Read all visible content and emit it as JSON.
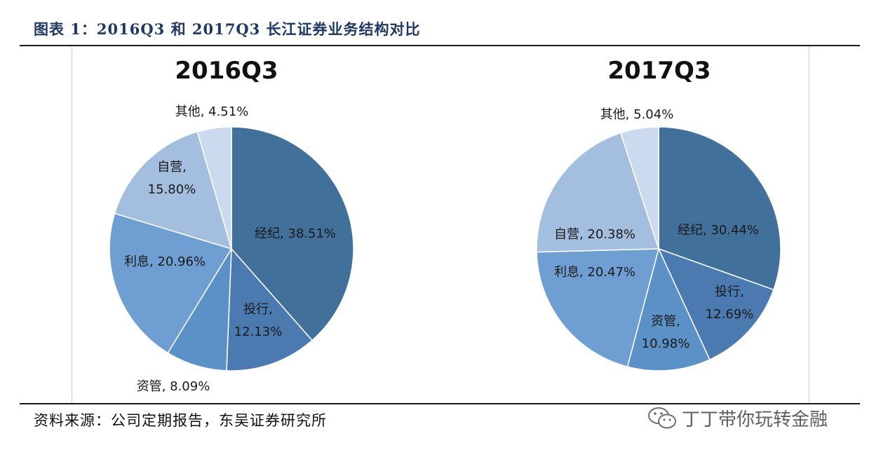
{
  "figure": {
    "title": "图表 1：2016Q3 和 2017Q3 长江证券业务结构对比",
    "source": "资料来源：公司定期报告，东吴证券研究所",
    "watermark": "丁丁带你玩转金融"
  },
  "colors": {
    "经纪": "#41709a",
    "投行": "#4a7ab0",
    "资管": "#5b91c7",
    "利息": "#6f9ed3",
    "自营": "#a3bedf",
    "其他": "#cbdaee"
  },
  "chart_data": [
    {
      "type": "pie",
      "title": "2016Q3",
      "slices": [
        {
          "name": "经纪",
          "value": 38.51,
          "label": "经纪, 38.51%"
        },
        {
          "name": "投行",
          "value": 12.13,
          "label": "投行,|12.13%"
        },
        {
          "name": "资管",
          "value": 8.09,
          "label": "资管, 8.09%"
        },
        {
          "name": "利息",
          "value": 20.96,
          "label": "利息, 20.96%"
        },
        {
          "name": "自营",
          "value": 15.8,
          "label": "自营,|15.80%"
        },
        {
          "name": "其他",
          "value": 4.51,
          "label": "其他, 4.51%"
        }
      ]
    },
    {
      "type": "pie",
      "title": "2017Q3",
      "slices": [
        {
          "name": "经纪",
          "value": 30.44,
          "label": "经纪, 30.44%"
        },
        {
          "name": "投行",
          "value": 12.69,
          "label": "投行,|12.69%"
        },
        {
          "name": "资管",
          "value": 10.98,
          "label": "资管,|10.98%"
        },
        {
          "name": "利息",
          "value": 20.47,
          "label": "利息, 20.47%"
        },
        {
          "name": "自营",
          "value": 20.38,
          "label": "自营, 20.38%"
        },
        {
          "name": "其他",
          "value": 5.04,
          "label": "其他, 5.04%"
        }
      ]
    }
  ]
}
